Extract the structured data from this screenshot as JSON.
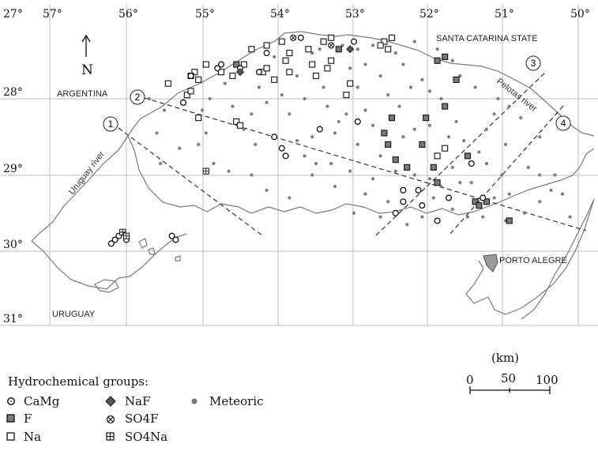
{
  "map": {
    "lon_labels": [
      "27°",
      "57°",
      "56°",
      "55°",
      "54°",
      "53°",
      "52°",
      "51°",
      "50°"
    ],
    "lat_labels": [
      "28°",
      "29°",
      "30°",
      "31°"
    ],
    "north_label": "N",
    "places": {
      "argentina": "ARGENTINA",
      "uruguay": "URUGUAY",
      "santa_catarina": "SANTA CATARINA STATE",
      "porto_alegre": "PORTO ALEGRE"
    },
    "rivers": {
      "uruguay_river": "Uruguay river",
      "pelotas_river": "Pelotas river"
    },
    "profiles": [
      "1",
      "2",
      "3",
      "4"
    ]
  },
  "scale": {
    "unit": "(km)",
    "ticks": [
      "0",
      "50",
      "100"
    ]
  },
  "legend": {
    "title": "Hydrochemical groups:",
    "items": [
      {
        "symbol": "open-circle-dot",
        "label": "CaMg"
      },
      {
        "symbol": "filled-square",
        "label": "F"
      },
      {
        "symbol": "open-square",
        "label": "Na"
      },
      {
        "symbol": "filled-diamond",
        "label": "NaF"
      },
      {
        "symbol": "circled-x",
        "label": "SO4F"
      },
      {
        "symbol": "boxed-plus",
        "label": "SO4Na"
      },
      {
        "symbol": "small-dot",
        "label": "Meteoric"
      }
    ]
  },
  "sites": {
    "F": [
      [
        54.55,
        27.55
      ],
      [
        52.6,
        28.45
      ],
      [
        52.55,
        28.6
      ],
      [
        52.45,
        28.8
      ],
      [
        52.3,
        28.9
      ],
      [
        52.1,
        28.6
      ],
      [
        52.05,
        28.25
      ],
      [
        51.95,
        28.9
      ],
      [
        51.8,
        28.1
      ],
      [
        51.65,
        27.75
      ],
      [
        51.9,
        27.5
      ],
      [
        51.8,
        27.45
      ],
      [
        51.5,
        28.75
      ],
      [
        51.4,
        29.35
      ],
      [
        51.35,
        29.4
      ],
      [
        51.25,
        29.35
      ],
      [
        50.95,
        29.6
      ],
      [
        51.9,
        29.1
      ],
      [
        52.5,
        28.25
      ],
      [
        53.2,
        27.35
      ]
    ],
    "Na": [
      [
        55.1,
        27.65
      ],
      [
        55.05,
        27.75
      ],
      [
        55.2,
        27.95
      ],
      [
        55.15,
        27.9
      ],
      [
        55.15,
        27.7
      ],
      [
        54.95,
        27.55
      ],
      [
        54.75,
        27.65
      ],
      [
        54.6,
        27.7
      ],
      [
        54.45,
        27.55
      ],
      [
        54.35,
        27.35
      ],
      [
        54.15,
        27.3
      ],
      [
        53.95,
        27.25
      ],
      [
        53.85,
        27.4
      ],
      [
        53.9,
        27.5
      ],
      [
        53.85,
        27.65
      ],
      [
        54.05,
        27.75
      ],
      [
        54.2,
        27.65
      ],
      [
        53.6,
        27.35
      ],
      [
        53.55,
        27.55
      ],
      [
        53.3,
        27.5
      ],
      [
        53.35,
        27.6
      ],
      [
        53.5,
        27.7
      ],
      [
        53.05,
        27.8
      ],
      [
        53.4,
        27.25
      ],
      [
        53.3,
        27.2
      ],
      [
        52.5,
        27.2
      ],
      [
        52.6,
        27.25
      ],
      [
        52.65,
        27.3
      ],
      [
        52.55,
        27.35
      ],
      [
        53.1,
        27.95
      ],
      [
        51.9,
        28.75
      ],
      [
        55.05,
        28.25
      ],
      [
        54.55,
        28.3
      ],
      [
        54.5,
        28.35
      ],
      [
        51.8,
        28.65
      ],
      [
        55.45,
        27.8
      ],
      [
        54.15,
        27.6
      ]
    ],
    "CaMg": [
      [
        56.0,
        29.85
      ],
      [
        56.1,
        29.8
      ],
      [
        56.15,
        29.85
      ],
      [
        56.2,
        29.9
      ],
      [
        55.4,
        29.8
      ],
      [
        55.35,
        29.85
      ],
      [
        55.25,
        28.05
      ],
      [
        55.15,
        27.7
      ],
      [
        54.75,
        27.55
      ],
      [
        54.8,
        27.6
      ],
      [
        54.15,
        27.4
      ],
      [
        54.05,
        28.5
      ],
      [
        53.95,
        28.65
      ],
      [
        53.9,
        28.75
      ],
      [
        53.45,
        28.4
      ],
      [
        52.95,
        28.3
      ],
      [
        52.35,
        29.2
      ],
      [
        52.35,
        29.35
      ],
      [
        52.15,
        29.2
      ],
      [
        52.1,
        29.4
      ],
      [
        51.75,
        29.3
      ],
      [
        51.9,
        29.6
      ],
      [
        52.45,
        29.5
      ],
      [
        51.3,
        29.3
      ],
      [
        51.45,
        28.85
      ],
      [
        54.5,
        27.6
      ],
      [
        53.7,
        27.2
      ],
      [
        53.0,
        27.25
      ],
      [
        54.25,
        27.65
      ]
    ],
    "NaF": [
      [
        54.5,
        27.65
      ],
      [
        53.05,
        27.35
      ]
    ],
    "SO4F": [
      [
        53.8,
        27.2
      ],
      [
        53.3,
        27.3
      ]
    ],
    "SO4Na": [
      [
        56.05,
        29.75
      ],
      [
        56.0,
        29.8
      ],
      [
        54.95,
        28.95
      ]
    ],
    "Meteoric": [
      [
        53.45,
        27.35
      ],
      [
        53.15,
        27.3
      ],
      [
        52.95,
        27.35
      ],
      [
        52.75,
        27.3
      ],
      [
        53.55,
        27.4
      ],
      [
        53.05,
        27.6
      ],
      [
        52.85,
        27.55
      ],
      [
        52.65,
        27.7
      ],
      [
        53.75,
        27.7
      ],
      [
        53.95,
        27.95
      ],
      [
        53.65,
        28.0
      ],
      [
        53.35,
        28.1
      ],
      [
        53.2,
        28.3
      ],
      [
        52.85,
        28.15
      ],
      [
        52.75,
        28.35
      ],
      [
        52.4,
        28.1
      ],
      [
        52.25,
        27.85
      ],
      [
        52.0,
        27.9
      ],
      [
        52.35,
        27.55
      ],
      [
        52.1,
        27.75
      ],
      [
        51.85,
        28.0
      ],
      [
        51.65,
        28.3
      ],
      [
        51.55,
        28.55
      ],
      [
        51.75,
        28.5
      ],
      [
        51.35,
        28.7
      ],
      [
        51.25,
        28.85
      ],
      [
        51.05,
        29.0
      ],
      [
        50.95,
        29.25
      ],
      [
        50.75,
        29.5
      ],
      [
        50.55,
        29.35
      ],
      [
        50.35,
        29.0
      ],
      [
        50.25,
        29.25
      ],
      [
        50.15,
        29.55
      ],
      [
        50.55,
        28.5
      ],
      [
        50.8,
        28.25
      ],
      [
        51.1,
        28.0
      ],
      [
        51.4,
        27.85
      ],
      [
        51.6,
        27.7
      ],
      [
        54.95,
        28.45
      ],
      [
        54.6,
        28.1
      ],
      [
        54.35,
        28.2
      ],
      [
        54.15,
        28.05
      ],
      [
        53.85,
        28.2
      ],
      [
        53.55,
        28.5
      ],
      [
        53.25,
        28.45
      ],
      [
        52.95,
        28.6
      ],
      [
        52.65,
        28.75
      ],
      [
        52.45,
        28.95
      ],
      [
        52.2,
        29.0
      ],
      [
        51.95,
        29.3
      ],
      [
        51.7,
        29.45
      ],
      [
        51.5,
        29.55
      ],
      [
        51.3,
        29.55
      ],
      [
        51.0,
        29.6
      ],
      [
        55.3,
        28.65
      ],
      [
        55.05,
        28.6
      ],
      [
        54.85,
        28.85
      ],
      [
        54.65,
        28.95
      ],
      [
        54.35,
        29.0
      ],
      [
        54.15,
        29.2
      ],
      [
        53.85,
        29.3
      ],
      [
        53.55,
        29.0
      ],
      [
        53.3,
        28.85
      ],
      [
        53.05,
        28.95
      ],
      [
        52.75,
        29.05
      ],
      [
        55.6,
        28.45
      ],
      [
        55.5,
        28.15
      ],
      [
        55.7,
        28.0
      ],
      [
        55.55,
        28.85
      ],
      [
        54.3,
        28.6
      ],
      [
        53.65,
        28.75
      ],
      [
        52.85,
        29.25
      ],
      [
        53.0,
        29.5
      ],
      [
        52.65,
        29.55
      ],
      [
        52.3,
        29.65
      ],
      [
        52.1,
        29.55
      ],
      [
        51.85,
        29.15
      ],
      [
        51.6,
        29.1
      ],
      [
        51.15,
        29.3
      ],
      [
        50.4,
        29.2
      ],
      [
        54.05,
        27.45
      ],
      [
        54.25,
        27.85
      ],
      [
        54.7,
        27.8
      ],
      [
        54.9,
        28.0
      ],
      [
        55.0,
        28.15
      ],
      [
        53.4,
        27.85
      ],
      [
        52.95,
        27.85
      ],
      [
        52.55,
        27.95
      ],
      [
        52.2,
        28.4
      ],
      [
        52.0,
        28.35
      ],
      [
        51.7,
        28.9
      ],
      [
        51.45,
        29.1
      ],
      [
        52.35,
        28.5
      ],
      [
        52.0,
        29.05
      ],
      [
        53.1,
        28.2
      ],
      [
        51.25,
        28.4
      ],
      [
        51.0,
        28.6
      ],
      [
        50.7,
        28.9
      ],
      [
        50.55,
        29.0
      ],
      [
        51.9,
        27.35
      ],
      [
        52.2,
        27.25
      ],
      [
        52.45,
        27.4
      ],
      [
        51.7,
        27.5
      ],
      [
        54.45,
        28.4
      ],
      [
        53.75,
        28.55
      ],
      [
        53.5,
        28.85
      ],
      [
        53.25,
        29.15
      ],
      [
        52.55,
        29.35
      ],
      [
        51.15,
        28.2
      ],
      [
        50.95,
        28.1
      ]
    ]
  }
}
